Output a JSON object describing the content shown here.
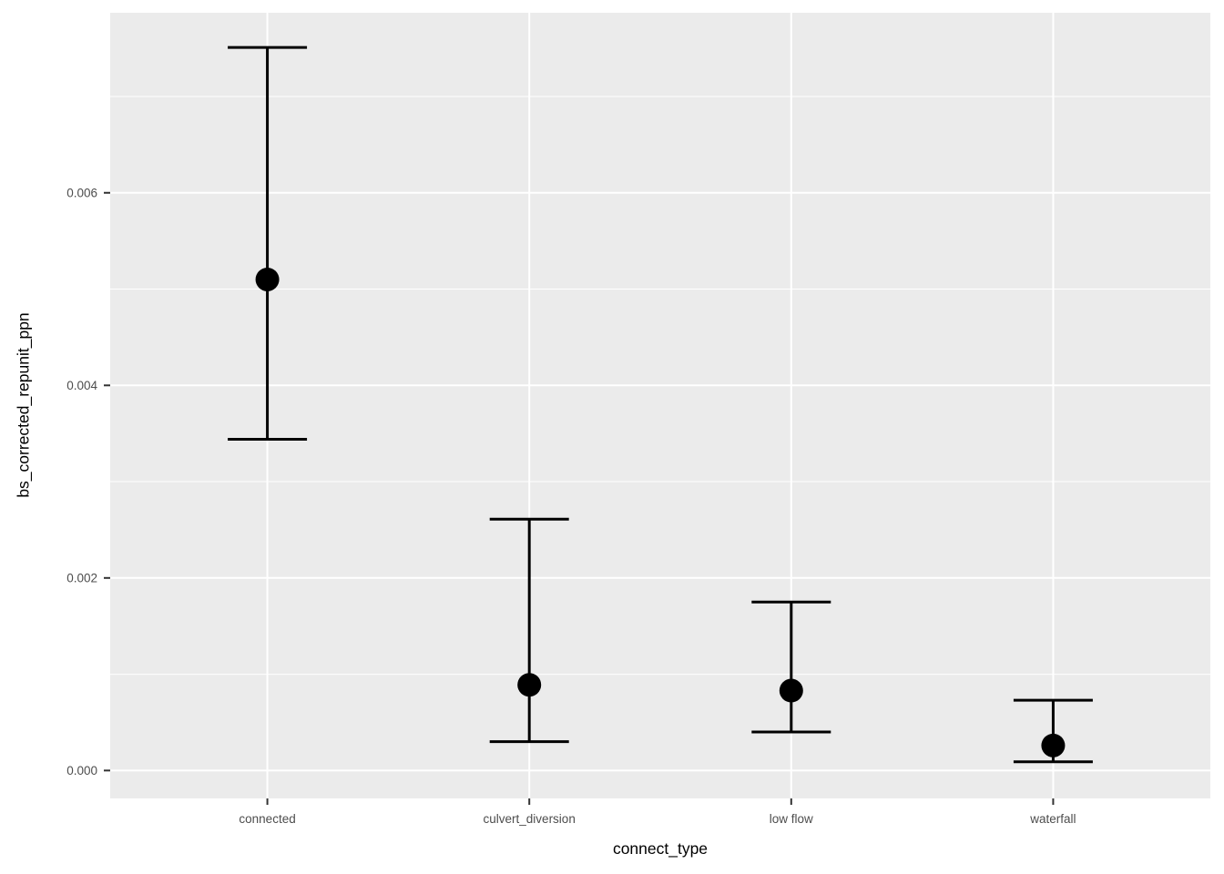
{
  "chart_data": {
    "type": "pointrange",
    "title": "",
    "xlabel": "connect_type",
    "ylabel": "bs_corrected_repunit_ppn",
    "categories": [
      "connected",
      "culvert_diversion",
      "low flow",
      "waterfall"
    ],
    "series": [
      {
        "name": "bs_corrected_repunit_ppn",
        "points": [
          {
            "category": "connected",
            "value": 0.0051,
            "lower": 0.00344,
            "upper": 0.00751
          },
          {
            "category": "culvert_diversion",
            "value": 0.00089,
            "lower": 0.0003,
            "upper": 0.00261
          },
          {
            "category": "low flow",
            "value": 0.00083,
            "lower": 0.0004,
            "upper": 0.00175
          },
          {
            "category": "waterfall",
            "value": 0.00026,
            "lower": 9e-05,
            "upper": 0.00073
          }
        ]
      }
    ],
    "ylim": [
      -0.00029,
      0.00787
    ],
    "y_major_ticks": [
      0.0,
      0.002,
      0.004,
      0.006
    ],
    "y_tick_labels": [
      "0.000",
      "0.002",
      "0.004",
      "0.006"
    ],
    "y_minor_ticks": [
      0.001,
      0.003,
      0.005,
      0.007
    ],
    "grid": "major-and-minor-horizontal, major-vertical",
    "legend": "none",
    "style": {
      "panel_background": "#EBEBEB",
      "gridline_color": "#FFFFFF",
      "point_color": "#000000",
      "errorbar_color": "#000000",
      "axis_text_color": "#4D4D4D",
      "axis_title_color": "#000000",
      "tick_mark_color": "#333333",
      "figure_background": "#FFFFFF"
    }
  }
}
